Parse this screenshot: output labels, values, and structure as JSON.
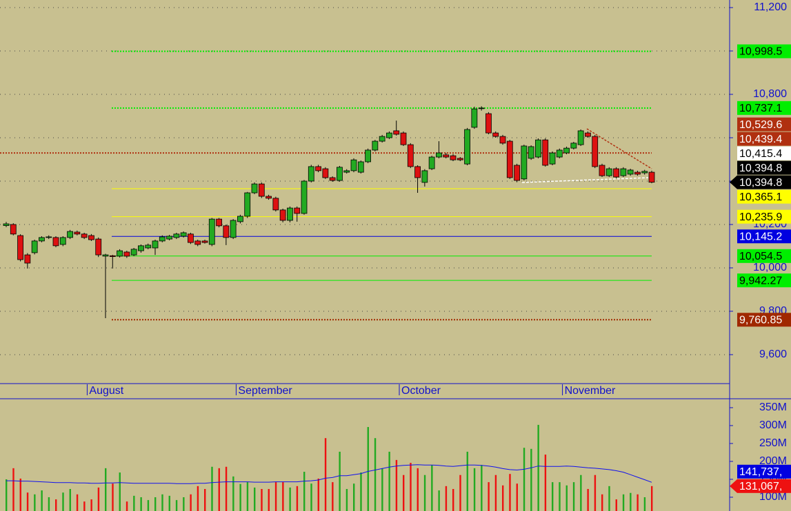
{
  "chart_data": [
    {
      "type": "candlestick",
      "categories": [
        null,
        null,
        null,
        null,
        null,
        null,
        null,
        null,
        null,
        null,
        null,
        null,
        "August",
        null,
        null,
        null,
        null,
        null,
        null,
        null,
        null,
        null,
        null,
        null,
        null,
        null,
        null,
        null,
        null,
        null,
        null,
        null,
        null,
        "September",
        null,
        null,
        null,
        null,
        null,
        null,
        null,
        null,
        null,
        null,
        null,
        null,
        null,
        null,
        null,
        null,
        null,
        null,
        null,
        null,
        null,
        null,
        "October",
        null,
        null,
        null,
        null,
        null,
        null,
        null,
        null,
        null,
        null,
        null,
        null,
        null,
        null,
        null,
        null,
        null,
        null,
        null,
        null,
        null,
        null,
        "November",
        null,
        null,
        null,
        null,
        null,
        null,
        null,
        null,
        null,
        null,
        null,
        null
      ],
      "open": [
        10195,
        10200,
        10149,
        10060,
        10070,
        10124,
        10140,
        10140,
        10108,
        10140,
        10165,
        10156,
        10149,
        10133,
        10054,
        10056,
        10054,
        10073,
        10060,
        10079,
        10092,
        10092,
        10124,
        10133,
        10140,
        10146,
        10156,
        10124,
        10124,
        10108,
        10225,
        10194,
        10140,
        10213,
        10238,
        10346,
        10387,
        10330,
        10321,
        10267,
        10219,
        10276,
        10251,
        10400,
        10467,
        10457,
        10416,
        10403,
        10441,
        10448,
        10441,
        10489,
        10543,
        10584,
        10600,
        10632,
        10622,
        10568,
        10467,
        10394,
        10457,
        10511,
        10521,
        10517,
        10505,
        10479,
        10648,
        10735,
        10711,
        10622,
        10606,
        10584,
        10473,
        10410,
        10505,
        10511,
        10590,
        10479,
        10511,
        10530,
        10552,
        10568,
        10622,
        10606,
        10473,
        10425,
        10457,
        10425,
        10432,
        10441,
        10438,
        10441
      ],
      "high": [
        10212,
        10206,
        10155,
        10068,
        10130,
        10146,
        10150,
        10146,
        10146,
        10175,
        10172,
        10162,
        10156,
        10140,
        10065,
        10060,
        10086,
        10079,
        10092,
        10108,
        10112,
        10130,
        10150,
        10152,
        10162,
        10168,
        10162,
        10130,
        10130,
        10230,
        10230,
        10200,
        10225,
        10245,
        10350,
        10394,
        10394,
        10337,
        10328,
        10273,
        10283,
        10283,
        10405,
        10475,
        10475,
        10464,
        10422,
        10470,
        10455,
        10505,
        10495,
        10550,
        10590,
        10613,
        10629,
        10679,
        10629,
        10575,
        10473,
        10455,
        10517,
        10584,
        10530,
        10524,
        10511,
        10645,
        10743,
        10745,
        10718,
        10629,
        10613,
        10590,
        10480,
        10568,
        10565,
        10597,
        10597,
        10537,
        10550,
        10559,
        10581,
        10638,
        10629,
        10613,
        10480,
        10464,
        10464,
        10464,
        10457,
        10448,
        10452,
        10448
      ],
      "low": [
        10188,
        10150,
        10030,
        9997,
        10062,
        10118,
        10133,
        10095,
        10100,
        10133,
        10150,
        10133,
        10124,
        10050,
        9768,
        9997,
        10048,
        10046,
        10054,
        10070,
        10086,
        10060,
        10118,
        10127,
        10133,
        10140,
        10110,
        10100,
        10112,
        10100,
        10187,
        10105,
        10133,
        10205,
        10230,
        10340,
        10322,
        10314,
        10260,
        10210,
        10210,
        10213,
        10245,
        10394,
        10441,
        10410,
        10397,
        10397,
        10435,
        10441,
        10435,
        10483,
        10537,
        10578,
        10594,
        10610,
        10562,
        10460,
        10346,
        10375,
        10451,
        10505,
        10505,
        10492,
        10492,
        10473,
        10641,
        10725,
        10616,
        10600,
        10568,
        10410,
        10395,
        10403,
        10498,
        10505,
        10467,
        10473,
        10505,
        10524,
        10546,
        10562,
        10600,
        10460,
        10419,
        10419,
        10413,
        10419,
        10425,
        10425,
        10430,
        10390
      ],
      "close": [
        10203,
        10156,
        10038,
        10022,
        10124,
        10140,
        10143,
        10102,
        10140,
        10168,
        10156,
        10140,
        10130,
        10060,
        10060,
        10052,
        10079,
        10054,
        10086,
        10102,
        10105,
        10124,
        10143,
        10146,
        10156,
        10162,
        10117,
        10108,
        10117,
        10225,
        10194,
        10140,
        10219,
        10238,
        10346,
        10387,
        10330,
        10321,
        10267,
        10219,
        10276,
        10251,
        10400,
        10467,
        10448,
        10416,
        10403,
        10464,
        10448,
        10498,
        10489,
        10543,
        10584,
        10606,
        10622,
        10616,
        10568,
        10467,
        10416,
        10448,
        10511,
        10530,
        10511,
        10498,
        10498,
        10638,
        10733,
        10737,
        10622,
        10606,
        10575,
        10416,
        10403,
        10562,
        10559,
        10590,
        10473,
        10530,
        10543,
        10552,
        10575,
        10632,
        10606,
        10467,
        10425,
        10457,
        10419,
        10457,
        10451,
        10432,
        10445,
        10394.8
      ],
      "up_color": "#22aa22",
      "down_color": "#dd1111",
      "ylim": [
        9466.5,
        11235
      ],
      "yticks": [
        {
          "value": 9600,
          "label": "9,600"
        },
        {
          "value": 9800,
          "label": "9,800"
        },
        {
          "value": 10000,
          "label": "10,000"
        },
        {
          "value": 10200,
          "label": "10,200"
        },
        {
          "value": 10400,
          "label": "10,400"
        },
        {
          "value": 10600,
          "label": "10,600"
        },
        {
          "value": 10800,
          "label": "10,800"
        },
        {
          "value": 11000,
          "label": "11,000"
        },
        {
          "value": 11200,
          "label": "11,200"
        }
      ],
      "grid": true,
      "levels": [
        {
          "value": 10998.5,
          "label": "10,998.5",
          "color": "#00ee00",
          "text_color": "#000000",
          "line": "dotted"
        },
        {
          "value": 10737.1,
          "label": "10,737.1",
          "color": "#00ee00",
          "text_color": "#000000",
          "line": "dotted"
        },
        {
          "value": 10529.6,
          "label": "10,529.6",
          "color": "#b03010",
          "text_color": "#ffffff",
          "line": "dotted",
          "extend_left": true
        },
        {
          "value": 10439.4,
          "label": "10,439.4",
          "color": "#b03010",
          "text_color": "#ffffff",
          "line": "none"
        },
        {
          "value": 10415.4,
          "label": "10,415.4",
          "color": "#ffffff",
          "text_color": "#000000",
          "line": "none"
        },
        {
          "value": 10394.8,
          "label": "10,394.8",
          "color": "#000000",
          "text_color": "#ffffff",
          "line": "none"
        },
        {
          "value": 10394.8,
          "label": "10,394.8",
          "color": "#000000",
          "text_color": "#ffffff",
          "line": "none",
          "arrow": true
        },
        {
          "value": 10365.1,
          "label": "10,365.1",
          "color": "#ffff00",
          "text_color": "#000000",
          "line": "solid"
        },
        {
          "value": 10235.9,
          "label": "10,235.9",
          "color": "#ffff00",
          "text_color": "#000000",
          "line": "solid"
        },
        {
          "value": 10145.2,
          "label": "10,145.2",
          "color": "#0000e0",
          "text_color": "#ffffff",
          "line": "solid"
        },
        {
          "value": 10054.5,
          "label": "10,054.5",
          "color": "#00ee00",
          "text_color": "#000000",
          "line": "solid"
        },
        {
          "value": 9942.27,
          "label": "9,942.27",
          "color": "#00ee00",
          "text_color": "#000000",
          "line": "solid"
        },
        {
          "value": 9760.85,
          "label": "9,760.85",
          "color": "#a02800",
          "text_color": "#ffffff",
          "line": "dotted"
        }
      ]
    },
    {
      "type": "bar",
      "values": [
        150,
        181,
        152,
        113,
        108,
        119,
        100,
        94,
        113,
        123,
        108,
        88,
        94,
        127,
        181,
        138,
        169,
        88,
        104,
        100,
        92,
        100,
        108,
        104,
        92,
        100,
        108,
        131,
        123,
        185,
        181,
        185,
        158,
        137,
        142,
        127,
        123,
        123,
        142,
        142,
        127,
        131,
        171,
        138,
        152,
        265,
        142,
        227,
        123,
        138,
        169,
        296,
        265,
        181,
        227,
        204,
        162,
        196,
        181,
        162,
        190,
        119,
        131,
        123,
        162,
        227,
        181,
        190,
        142,
        162,
        133,
        165,
        138,
        238,
        235,
        302,
        219,
        142,
        142,
        133,
        142,
        162,
        123,
        162,
        108,
        131,
        94,
        108,
        112,
        108,
        100,
        131.067
      ],
      "up_color": "#22aa22",
      "down_color": "#ee1111",
      "line_values": [
        146,
        146,
        145,
        145,
        144,
        143,
        142,
        141,
        141,
        141,
        140,
        140,
        139,
        139,
        140,
        140,
        141,
        140,
        139,
        139,
        139,
        139,
        139,
        139,
        138,
        138,
        138,
        139,
        139,
        141,
        142,
        143,
        143,
        143,
        143,
        142,
        142,
        142,
        143,
        143,
        143,
        143,
        145,
        146,
        148,
        153,
        155,
        160,
        160,
        163,
        166,
        172,
        176,
        180,
        184,
        187,
        189,
        190,
        191,
        190,
        190,
        189,
        187,
        186,
        188,
        190,
        190,
        189,
        187,
        184,
        180,
        177,
        176,
        178,
        182,
        187,
        186,
        186,
        186,
        187,
        186,
        184,
        182,
        181,
        179,
        177,
        174,
        170,
        163,
        156,
        149,
        141.737
      ],
      "line_color": "#1010ee",
      "ylim": [
        61.5,
        373
      ],
      "yticks": [
        {
          "value": 100,
          "label": "100M"
        },
        {
          "value": 150,
          "label": "150M"
        },
        {
          "value": 200,
          "label": "200M"
        },
        {
          "value": 250,
          "label": "250M"
        },
        {
          "value": 300,
          "label": "300M"
        },
        {
          "value": 350,
          "label": "350M"
        }
      ],
      "levels": [
        {
          "value": 141.737,
          "label": "141,737,",
          "color": "#0000e0",
          "text_color": "#ffffff",
          "line": "none"
        },
        {
          "value": 131.067,
          "label": "131,067,",
          "color": "#ee1111",
          "text_color": "#ffffff",
          "line": "none",
          "arrow": true
        }
      ]
    }
  ]
}
